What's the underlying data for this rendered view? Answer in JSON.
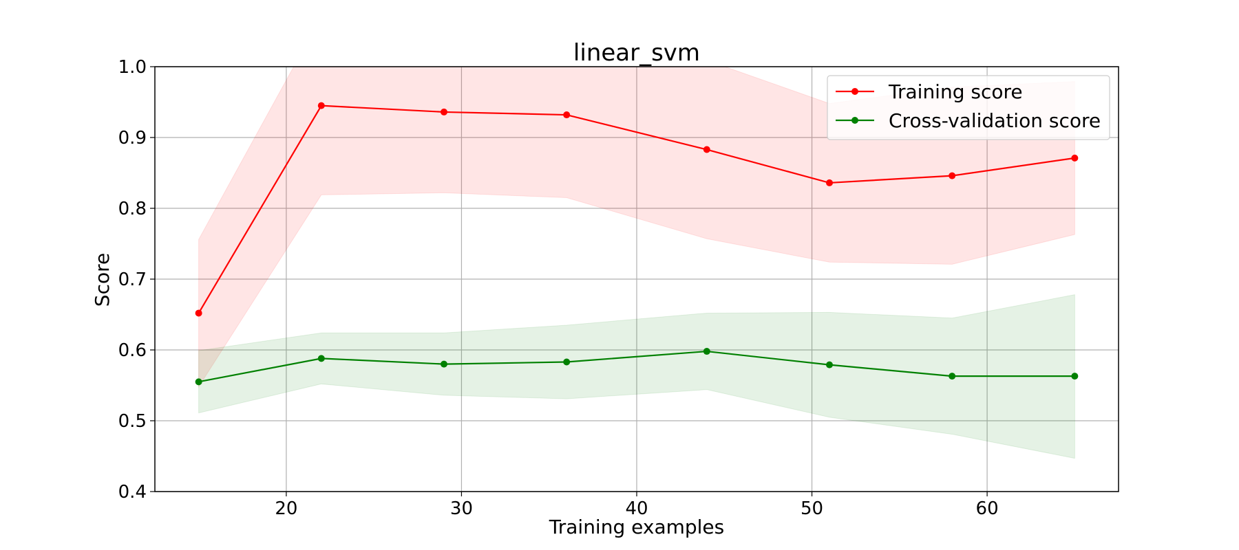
{
  "chart_data": {
    "type": "line",
    "title": "linear_svm",
    "xlabel": "Training examples",
    "ylabel": "Score",
    "xlim": [
      12.5,
      67.5
    ],
    "ylim": [
      0.4,
      1.0
    ],
    "xticks": [
      20,
      30,
      40,
      50,
      60
    ],
    "yticks": [
      0.4,
      0.5,
      0.6,
      0.7,
      0.8,
      0.9,
      1.0
    ],
    "grid": true,
    "legend_position": "upper right",
    "x": [
      15,
      22,
      29,
      36,
      44,
      51,
      58,
      65
    ],
    "series": [
      {
        "name": "Training score",
        "color": "#ff0000",
        "band_color": "#ff0000",
        "values": [
          0.652,
          0.945,
          0.936,
          0.932,
          0.883,
          0.836,
          0.846,
          0.871
        ],
        "band_lower": [
          0.548,
          0.819,
          0.822,
          0.815,
          0.757,
          0.724,
          0.721,
          0.763
        ],
        "band_upper": [
          0.756,
          1.071,
          1.05,
          1.049,
          1.009,
          0.948,
          0.971,
          0.979
        ]
      },
      {
        "name": "Cross-validation score",
        "color": "#008000",
        "band_color": "#008000",
        "values": [
          0.555,
          0.588,
          0.58,
          0.583,
          0.598,
          0.579,
          0.563,
          0.563
        ],
        "band_lower": [
          0.511,
          0.552,
          0.536,
          0.531,
          0.544,
          0.505,
          0.481,
          0.447
        ],
        "band_upper": [
          0.599,
          0.624,
          0.624,
          0.635,
          0.652,
          0.653,
          0.645,
          0.678
        ]
      }
    ]
  }
}
